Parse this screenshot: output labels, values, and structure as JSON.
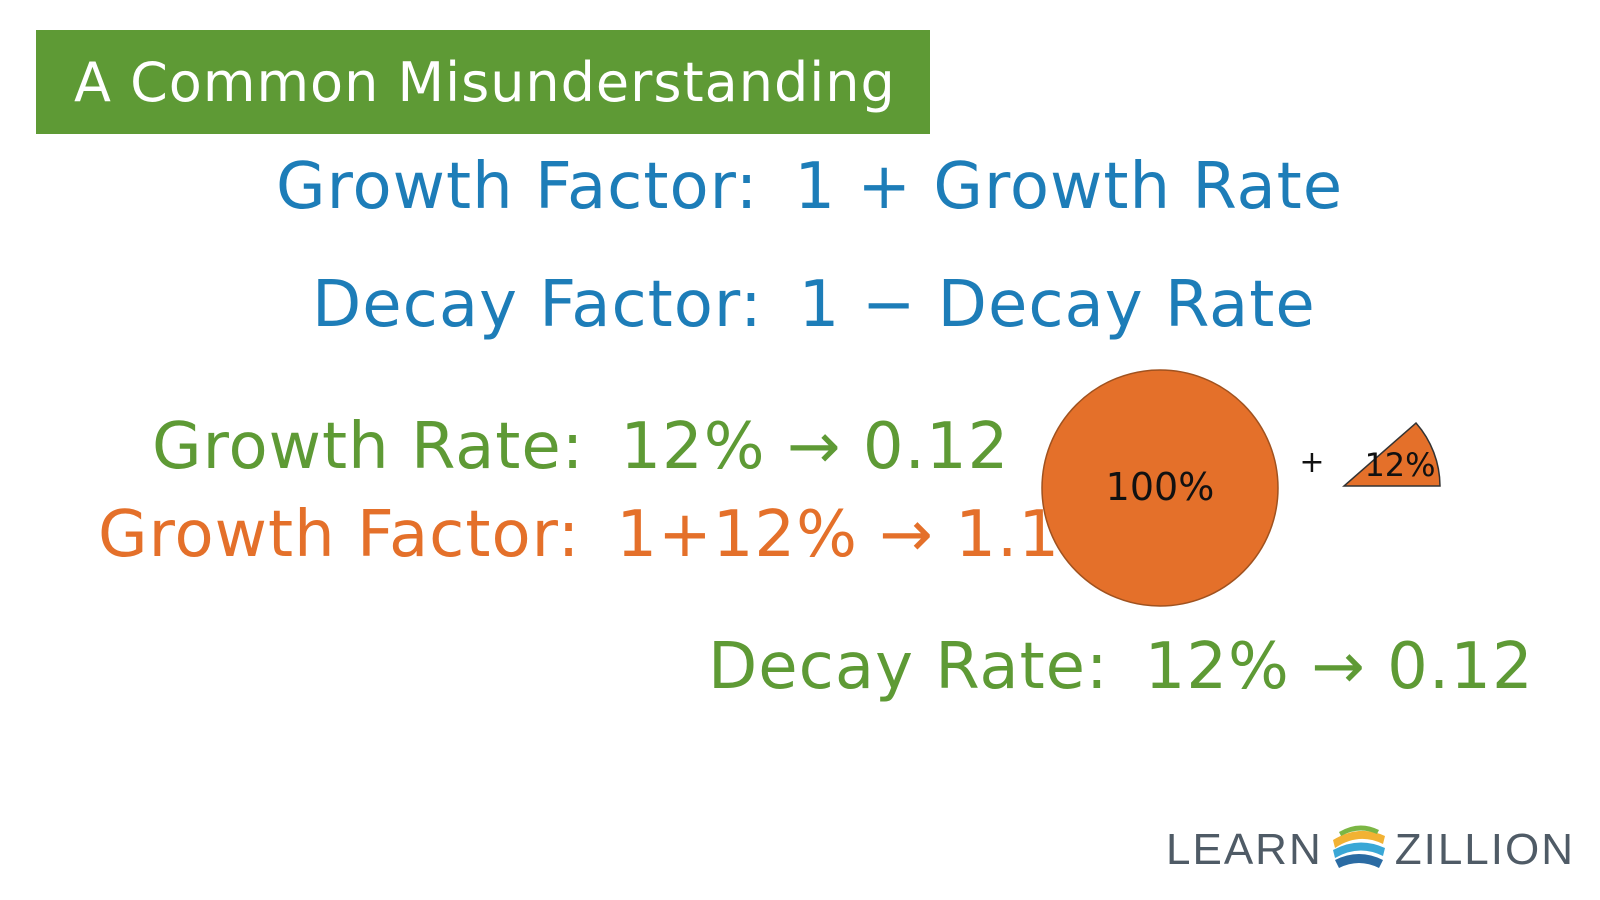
{
  "title": "A Common Misunderstanding",
  "definitions": {
    "growth_factor_label": "Growth Factor:",
    "growth_factor_formula": "1 + Growth Rate",
    "decay_factor_label": "Decay Factor:",
    "decay_factor_formula": "1 − Decay Rate"
  },
  "examples": {
    "growth_rate_label": "Growth Rate:",
    "growth_rate_value": "12% → 0.12",
    "growth_factor_label": "Growth Factor:",
    "growth_factor_value": "1+12% → 1.12",
    "decay_rate_label": "Decay Rate:",
    "decay_rate_value": "12% → 0.12"
  },
  "diagram": {
    "whole_label": "100%",
    "plus_sign": "+",
    "slice_label": "12%",
    "slice_percent": 12,
    "fill_color": "#e4702a"
  },
  "logo": {
    "left_text": "LEARN",
    "right_text": "ZILLION"
  },
  "colors": {
    "banner": "#5e9a35",
    "blue": "#1d7db8",
    "green": "#5e9a35",
    "orange": "#e4702a"
  }
}
